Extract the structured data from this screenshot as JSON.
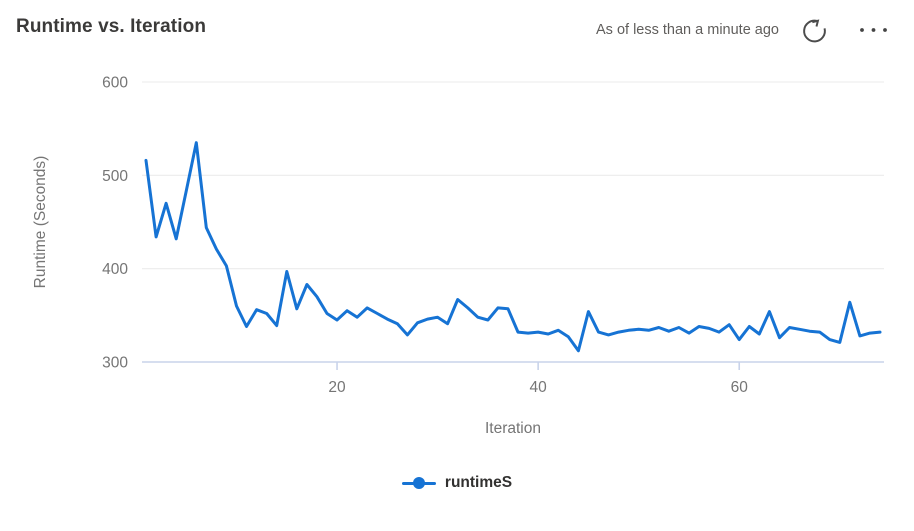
{
  "header": {
    "title": "Runtime vs. Iteration",
    "as_of": "As of less than a minute ago",
    "refresh_icon": "refresh-icon",
    "more_icon": "ellipsis-icon"
  },
  "chart_data": {
    "type": "line",
    "title": "Runtime vs. Iteration",
    "xlabel": "Iteration",
    "ylabel": "Runtime (Seconds)",
    "xlim": [
      1,
      74
    ],
    "ylim": [
      300,
      600
    ],
    "x_ticks": [
      20,
      40,
      60
    ],
    "y_ticks": [
      300,
      400,
      500,
      600
    ],
    "grid": "horizontal",
    "legend_position": "bottom",
    "series": [
      {
        "name": "runtimeS",
        "color": "#1673d4",
        "x": [
          1,
          2,
          3,
          4,
          5,
          6,
          7,
          8,
          9,
          10,
          11,
          12,
          13,
          14,
          15,
          16,
          17,
          18,
          19,
          20,
          21,
          22,
          23,
          24,
          25,
          26,
          27,
          28,
          29,
          30,
          31,
          32,
          33,
          34,
          35,
          36,
          37,
          38,
          39,
          40,
          41,
          42,
          43,
          44,
          45,
          46,
          47,
          48,
          49,
          50,
          51,
          52,
          53,
          54,
          55,
          56,
          57,
          58,
          59,
          60,
          61,
          62,
          63,
          64,
          65,
          66,
          67,
          68,
          69,
          70,
          71,
          72,
          73,
          74
        ],
        "values": [
          516,
          434,
          470,
          432,
          483,
          535,
          444,
          421,
          403,
          360,
          338,
          356,
          352,
          339,
          397,
          357,
          383,
          370,
          352,
          345,
          355,
          348,
          358,
          352,
          346,
          341,
          329,
          342,
          346,
          348,
          341,
          367,
          358,
          348,
          345,
          358,
          357,
          332,
          331,
          332,
          330,
          334,
          327,
          312,
          354,
          332,
          329,
          332,
          334,
          335,
          334,
          337,
          333,
          337,
          331,
          338,
          336,
          332,
          340,
          324,
          338,
          330,
          354,
          326,
          337,
          335,
          333,
          332,
          324,
          321,
          364,
          328,
          331,
          332
        ]
      }
    ]
  },
  "legend": {
    "items": [
      {
        "label": "runtimeS",
        "color": "#1673d4",
        "marker": "line-dot"
      }
    ]
  },
  "colors": {
    "accent": "#1673d4",
    "title": "#3b3a39",
    "muted": "#605e5c",
    "tick": "#757575",
    "grid": "#ebebeb",
    "axis": "#c9d3ea",
    "icon": "#4c4c4c"
  }
}
